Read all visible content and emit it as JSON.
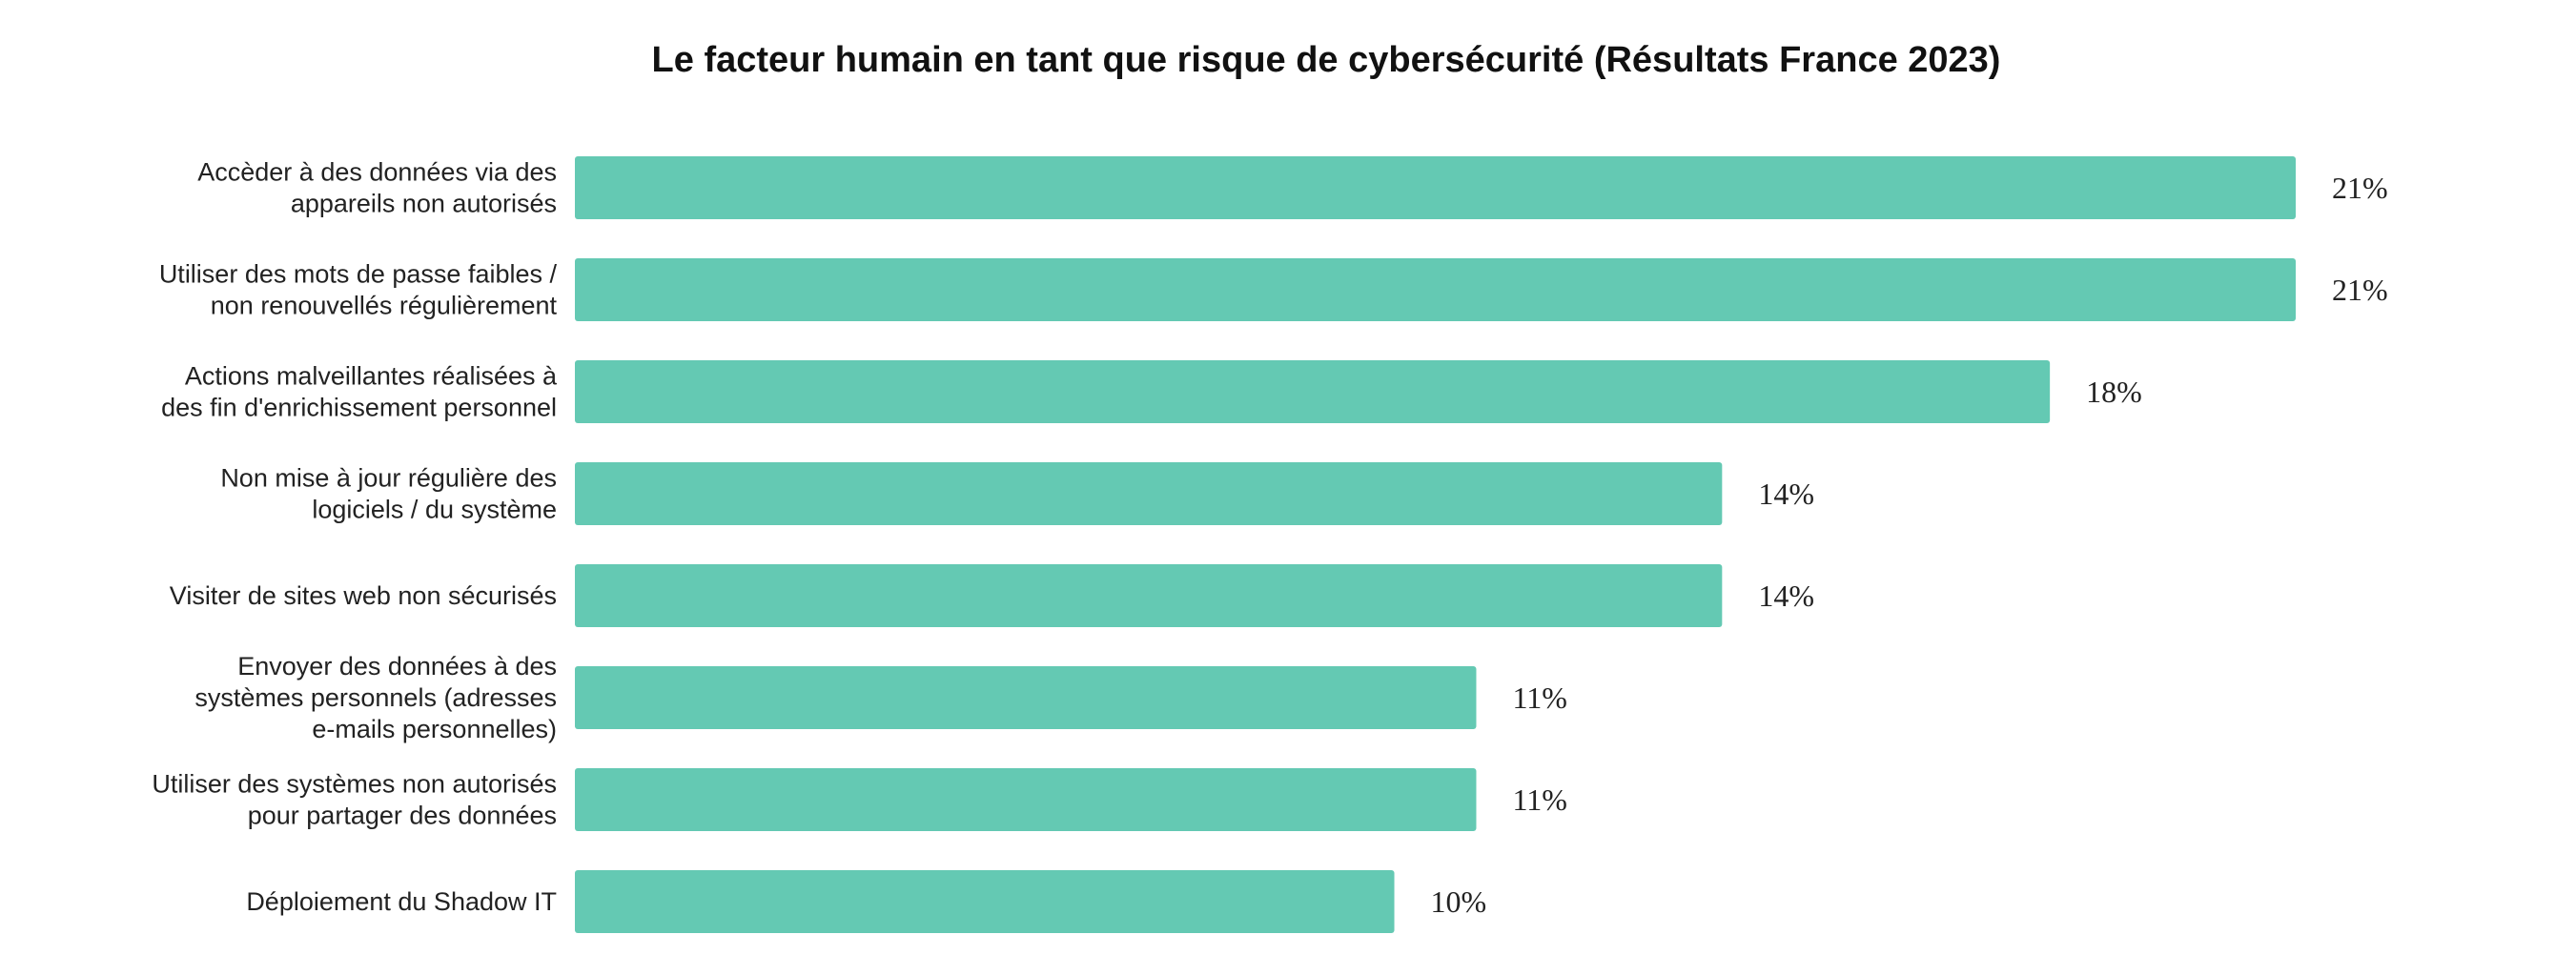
{
  "chart_data": {
    "type": "bar",
    "orientation": "horizontal",
    "title": "Le facteur humain en tant que risque de cybersécurité (Résultats France 2023)",
    "xlabel": "",
    "ylabel": "",
    "categories": [
      [
        "Accèder à des données via des",
        "appareils non autorisés"
      ],
      [
        "Utiliser des mots de passe faibles /",
        "non renouvellés régulièrement"
      ],
      [
        "Actions malveillantes réalisées à",
        "des fin d'enrichissement personnel"
      ],
      [
        "Non mise à jour régulière des",
        "logiciels / du système"
      ],
      [
        "Visiter de sites web non sécurisés"
      ],
      [
        "Envoyer des données à des",
        "systèmes personnels (adresses",
        "e-mails personnelles)"
      ],
      [
        "Utiliser des systèmes non autorisés",
        "pour partager des données"
      ],
      [
        "Déploiement du Shadow IT"
      ]
    ],
    "values": [
      21,
      21,
      18,
      14,
      14,
      11,
      11,
      10
    ],
    "value_labels": [
      "21%",
      "21%",
      "18%",
      "14%",
      "14%",
      "11%",
      "11%",
      "10%"
    ],
    "xlim": [
      0,
      21
    ],
    "grid": false,
    "legend": "none",
    "bar_color": "#64C9B3"
  }
}
